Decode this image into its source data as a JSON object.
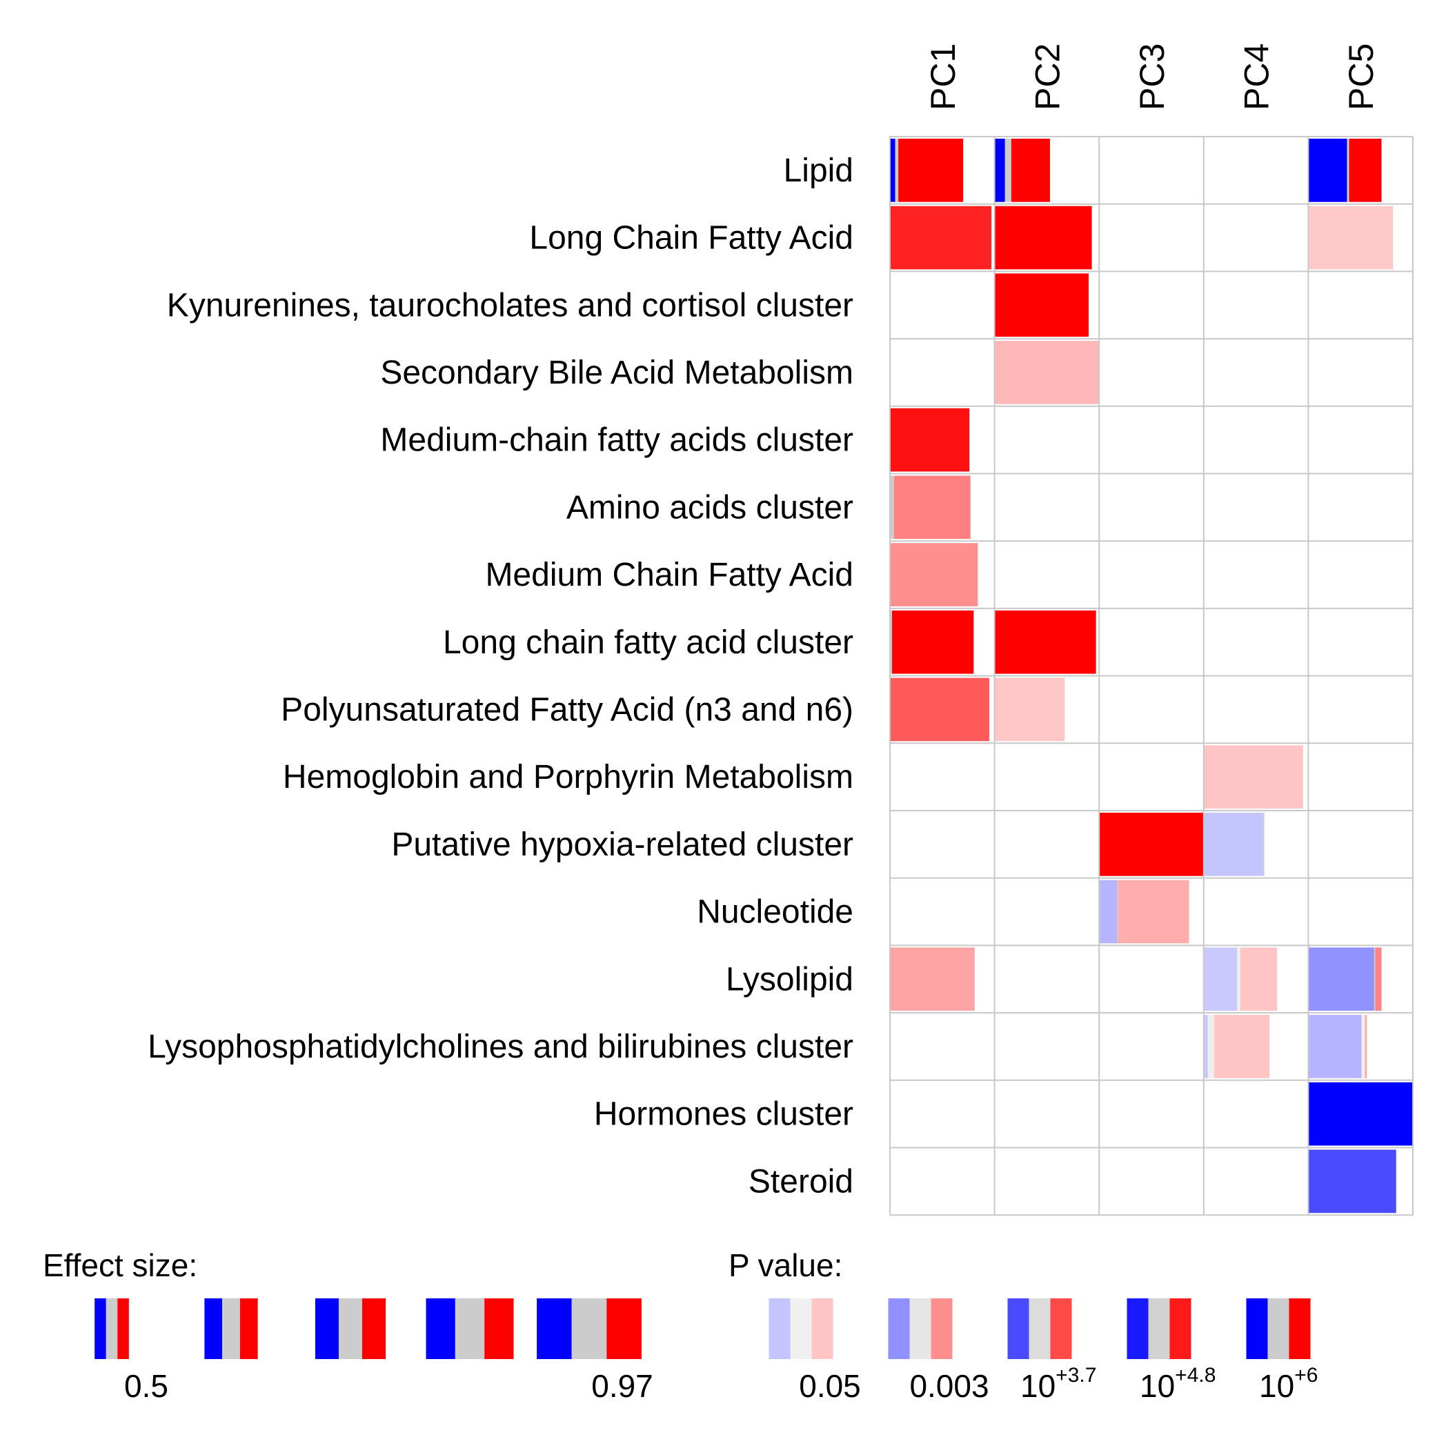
{
  "chart_data": {
    "type": "heatmap",
    "columns": [
      "PC1",
      "PC2",
      "PC3",
      "PC4",
      "PC5"
    ],
    "rows": [
      "Lipid",
      "Long Chain Fatty Acid",
      "Kynurenines, taurocholates and cortisol cluster",
      "Secondary Bile Acid Metabolism",
      "Medium-chain fatty acids cluster",
      "Amino acids cluster",
      "Medium Chain Fatty Acid",
      "Long chain fatty acid cluster",
      "Polyunsaturated Fatty Acid (n3 and n6)",
      "Hemoglobin and Porphyrin Metabolism",
      "Putative hypoxia-related cluster",
      "Nucleotide",
      "Lysolipid",
      "Lysophosphatidylcholines and bilirubines cluster",
      "Hormones cluster",
      "Steroid"
    ],
    "cells": [
      {
        "row": 0,
        "col": 0,
        "blue": 0.05,
        "gray": 0.03,
        "red": 0.62,
        "blue_color": "#0000ff",
        "gray_color": "#cccccc",
        "red_color": "#ff0000"
      },
      {
        "row": 0,
        "col": 1,
        "blue": 0.1,
        "gray": 0.06,
        "red": 0.37,
        "blue_color": "#0000ff",
        "gray_color": "#cccccc",
        "red_color": "#ff0000"
      },
      {
        "row": 0,
        "col": 4,
        "blue": 0.37,
        "gray": 0.02,
        "red": 0.31,
        "blue_color": "#0000ff",
        "gray_color": "#cccccc",
        "red_color": "#ff0000"
      },
      {
        "row": 1,
        "col": 0,
        "blue": 0,
        "gray": 0,
        "red": 0.97,
        "red_color": "#ff2222"
      },
      {
        "row": 1,
        "col": 1,
        "blue": 0,
        "gray": 0,
        "red": 0.93,
        "red_color": "#ff0000"
      },
      {
        "row": 1,
        "col": 4,
        "blue": 0,
        "gray": 0,
        "red": 0.81,
        "red_color": "#ffc9c9"
      },
      {
        "row": 2,
        "col": 1,
        "blue": 0,
        "gray": 0,
        "red": 0.9,
        "red_color": "#ff0000"
      },
      {
        "row": 3,
        "col": 1,
        "blue": 0,
        "gray": 0,
        "red": 1.0,
        "red_color": "#ffb8b8"
      },
      {
        "row": 4,
        "col": 0,
        "blue": 0,
        "gray": 0,
        "red": 0.76,
        "red_color": "#ff1111"
      },
      {
        "row": 5,
        "col": 0,
        "blue": 0,
        "gray": 0.04,
        "red": 0.73,
        "red_color": "#ff8080"
      },
      {
        "row": 6,
        "col": 0,
        "blue": 0,
        "gray": 0,
        "red": 0.84,
        "red_color": "#ff8f8f"
      },
      {
        "row": 7,
        "col": 0,
        "blue": 0,
        "gray": 0.02,
        "red": 0.78,
        "red_color": "#ff0000"
      },
      {
        "row": 7,
        "col": 1,
        "blue": 0,
        "gray": 0,
        "red": 0.97,
        "red_color": "#ff0000"
      },
      {
        "row": 8,
        "col": 0,
        "blue": 0,
        "gray": 0,
        "red": 0.95,
        "red_color": "#ff5a5a"
      },
      {
        "row": 8,
        "col": 1,
        "blue": 0,
        "gray": 0,
        "red": 0.67,
        "red_color": "#ffc6c6"
      },
      {
        "row": 9,
        "col": 3,
        "blue": 0,
        "gray": 0,
        "red": 0.95,
        "red_color": "#ffc4c4"
      },
      {
        "row": 10,
        "col": 2,
        "blue": 0,
        "gray": 0,
        "red": 1.0,
        "red_color": "#ff0000"
      },
      {
        "row": 10,
        "col": 3,
        "blue": 0.57,
        "gray": 0.01,
        "red": 0,
        "blue_color": "#c4c4ff"
      },
      {
        "row": 11,
        "col": 2,
        "blue": 0.17,
        "gray": 0.01,
        "red": 0.68,
        "blue_color": "#b5b5ff",
        "red_color": "#ffadad"
      },
      {
        "row": 12,
        "col": 0,
        "blue": 0,
        "gray": 0,
        "red": 0.81,
        "red_color": "#ffa4a4"
      },
      {
        "row": 12,
        "col": 3,
        "blue": 0.32,
        "gray": 0.03,
        "red": 0.35,
        "blue_color": "#c9c9ff",
        "gray_color": "#eeeeee",
        "red_color": "#ffc4c4"
      },
      {
        "row": 12,
        "col": 4,
        "blue": 0.63,
        "gray": 0.01,
        "red": 0.06,
        "blue_color": "#9191ff",
        "red_color": "#ff8585"
      },
      {
        "row": 13,
        "col": 3,
        "blue": 0.04,
        "gray": 0.06,
        "red": 0.53,
        "blue_color": "#c9c9ff",
        "gray_color": "#eeeeee",
        "red_color": "#ffc4c4"
      },
      {
        "row": 13,
        "col": 4,
        "blue": 0.51,
        "gray": 0.03,
        "red": 0.02,
        "blue_color": "#b5b5ff",
        "gray_color": "#eeeeee",
        "red_color": "#ffadad"
      },
      {
        "row": 14,
        "col": 4,
        "blue": 1.0,
        "gray": 0,
        "red": 0,
        "blue_color": "#0000ff"
      },
      {
        "row": 15,
        "col": 4,
        "blue": 0.84,
        "gray": 0,
        "red": 0,
        "blue_color": "#4a4aff"
      }
    ],
    "legend_effect": {
      "title": "Effect size:",
      "tick_labels": [
        "0.5",
        "0.97"
      ],
      "swatches": [
        {
          "blue": 0.18,
          "gray": 0.18,
          "red": 0.18
        },
        {
          "blue": 0.28,
          "gray": 0.28,
          "red": 0.28
        },
        {
          "blue": 0.37,
          "gray": 0.37,
          "red": 0.37
        },
        {
          "blue": 0.46,
          "gray": 0.46,
          "red": 0.46
        },
        {
          "blue": 0.55,
          "gray": 0.55,
          "red": 0.55
        }
      ]
    },
    "legend_pvalue": {
      "title": "P value:",
      "levels": [
        {
          "label": "0.05",
          "base": "",
          "exp": "",
          "blue": "#c4c4ff",
          "gray": "#f0f0f0",
          "red": "#ffc4c4"
        },
        {
          "label": "0.003",
          "base": "",
          "exp": "",
          "blue": "#9090ff",
          "gray": "#e6e6e6",
          "red": "#ff8f8f"
        },
        {
          "label": "",
          "base": "10",
          "exp": "+3.7",
          "blue": "#4a4aff",
          "gray": "#dcdcdc",
          "red": "#ff4a4a"
        },
        {
          "label": "",
          "base": "10",
          "exp": "+4.8",
          "blue": "#1a1aff",
          "gray": "#d2d2d2",
          "red": "#ff1a1a"
        },
        {
          "label": "",
          "base": "10",
          "exp": "+6",
          "blue": "#0000ff",
          "gray": "#cccccc",
          "red": "#ff0000"
        }
      ]
    }
  }
}
